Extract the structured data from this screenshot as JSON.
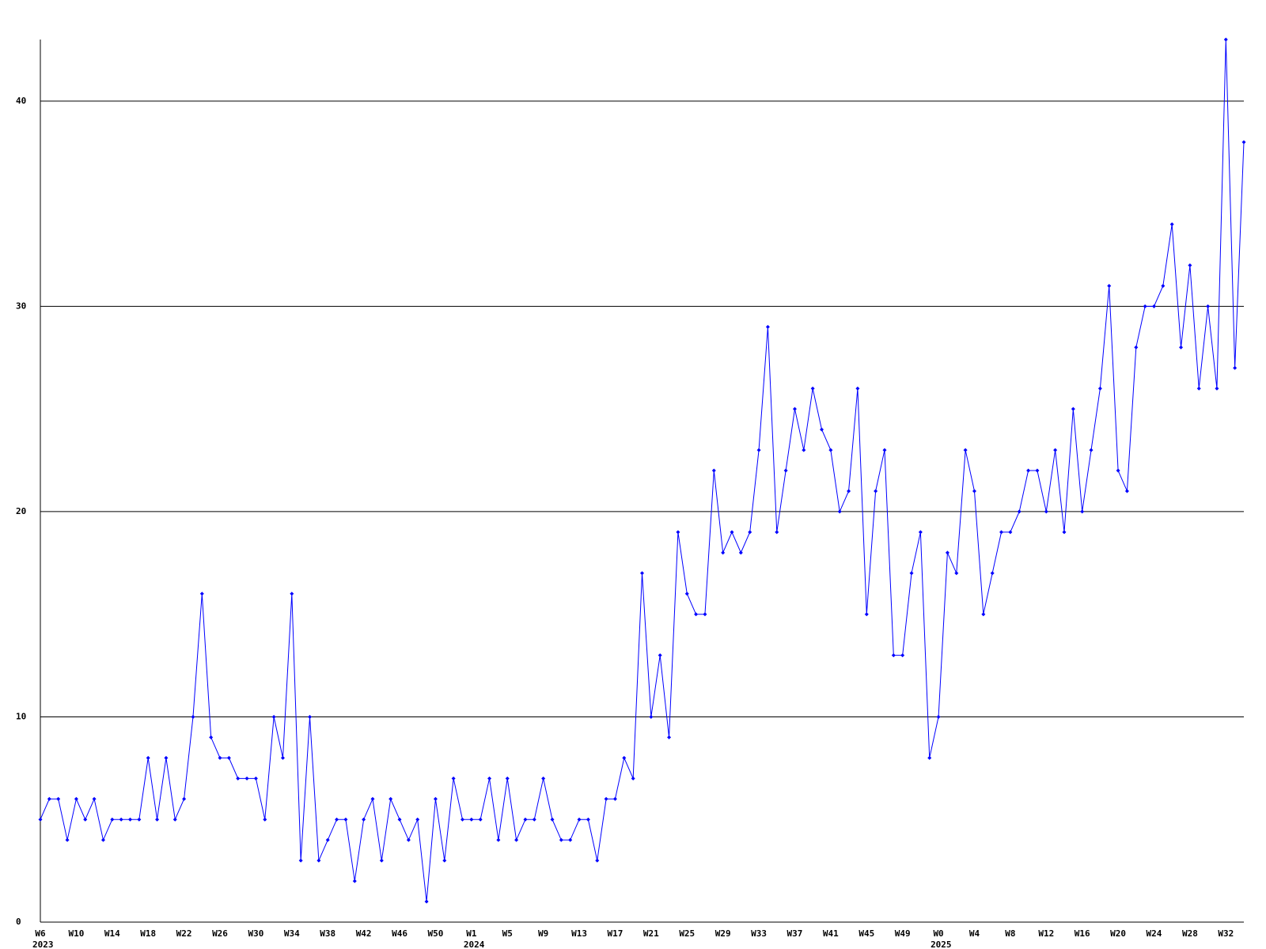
{
  "chart_data": {
    "type": "line",
    "categories": [
      "W6",
      null,
      null,
      null,
      "W10",
      null,
      null,
      null,
      "W14",
      null,
      null,
      null,
      "W18",
      null,
      null,
      null,
      "W22",
      null,
      null,
      null,
      "W26",
      null,
      null,
      null,
      "W30",
      null,
      null,
      null,
      "W34",
      null,
      null,
      null,
      "W38",
      null,
      null,
      null,
      "W42",
      null,
      null,
      null,
      "W46",
      null,
      null,
      null,
      "W50",
      null,
      null,
      null,
      "W1",
      null,
      null,
      null,
      "W5",
      null,
      null,
      null,
      "W9",
      null,
      null,
      null,
      "W13",
      null,
      null,
      null,
      "W17",
      null,
      null,
      null,
      "W21",
      null,
      null,
      null,
      "W25",
      null,
      null,
      null,
      "W29",
      null,
      null,
      null,
      "W33",
      null,
      null,
      null,
      "W37",
      null,
      null,
      null,
      "W41",
      null,
      null,
      null,
      "W45",
      null,
      null,
      null,
      "W49",
      null,
      null,
      null,
      "W0",
      null,
      null,
      null,
      "W4",
      null,
      null,
      null,
      "W8",
      null,
      null,
      null,
      "W12",
      null,
      null,
      null,
      "W16",
      null,
      null,
      null,
      "W20",
      null,
      null,
      null,
      "W24",
      null,
      null,
      null,
      "W28",
      null,
      null,
      null,
      "W32",
      null,
      null
    ],
    "years": [
      "2023",
      null,
      null,
      null,
      null,
      null,
      null,
      null,
      null,
      null,
      null,
      null,
      null,
      null,
      null,
      null,
      null,
      null,
      null,
      null,
      null,
      null,
      null,
      null,
      null,
      null,
      null,
      null,
      null,
      null,
      null,
      null,
      null,
      null,
      null,
      null,
      null,
      null,
      null,
      null,
      null,
      null,
      null,
      null,
      null,
      null,
      null,
      null,
      "2024",
      null,
      null,
      null,
      null,
      null,
      null,
      null,
      null,
      null,
      null,
      null,
      null,
      null,
      null,
      null,
      null,
      null,
      null,
      null,
      null,
      null,
      null,
      null,
      null,
      null,
      null,
      null,
      null,
      null,
      null,
      null,
      null,
      null,
      null,
      null,
      null,
      null,
      null,
      null,
      null,
      null,
      null,
      null,
      null,
      null,
      null,
      null,
      null,
      null,
      null,
      null,
      "2025",
      null,
      null,
      null,
      null,
      null,
      null,
      null,
      null,
      null,
      null,
      null,
      null,
      null,
      null,
      null,
      null,
      null,
      null,
      null,
      null,
      null,
      null,
      null,
      null,
      null,
      null,
      null,
      null,
      null,
      null,
      null,
      null,
      null,
      null
    ],
    "values": [
      5,
      6,
      6,
      4,
      6,
      5,
      6,
      4,
      5,
      5,
      5,
      5,
      8,
      5,
      8,
      5,
      6,
      10,
      16,
      9,
      8,
      8,
      7,
      7,
      7,
      5,
      10,
      8,
      16,
      3,
      10,
      3,
      4,
      5,
      5,
      2,
      5,
      6,
      3,
      6,
      5,
      4,
      5,
      1,
      6,
      3,
      7,
      5,
      5,
      5,
      7,
      4,
      7,
      4,
      5,
      5,
      7,
      5,
      4,
      4,
      5,
      5,
      3,
      6,
      6,
      8,
      7,
      17,
      10,
      13,
      9,
      19,
      16,
      15,
      15,
      22,
      18,
      19,
      18,
      19,
      23,
      29,
      19,
      22,
      25,
      23,
      26,
      24,
      23,
      20,
      21,
      26,
      15,
      21,
      23,
      13,
      13,
      17,
      19,
      8,
      10,
      18,
      17,
      23,
      21,
      15,
      17,
      19,
      19,
      20,
      22,
      22,
      20,
      23,
      19,
      25,
      20,
      23,
      26,
      31,
      22,
      21,
      28,
      30,
      30,
      31,
      34,
      28,
      32,
      26,
      30,
      26,
      43,
      27,
      38
    ],
    "color": "#0000ff",
    "ylim": [
      0,
      43
    ],
    "yticks": [
      0,
      10,
      20,
      30,
      40
    ],
    "grid": true
  }
}
